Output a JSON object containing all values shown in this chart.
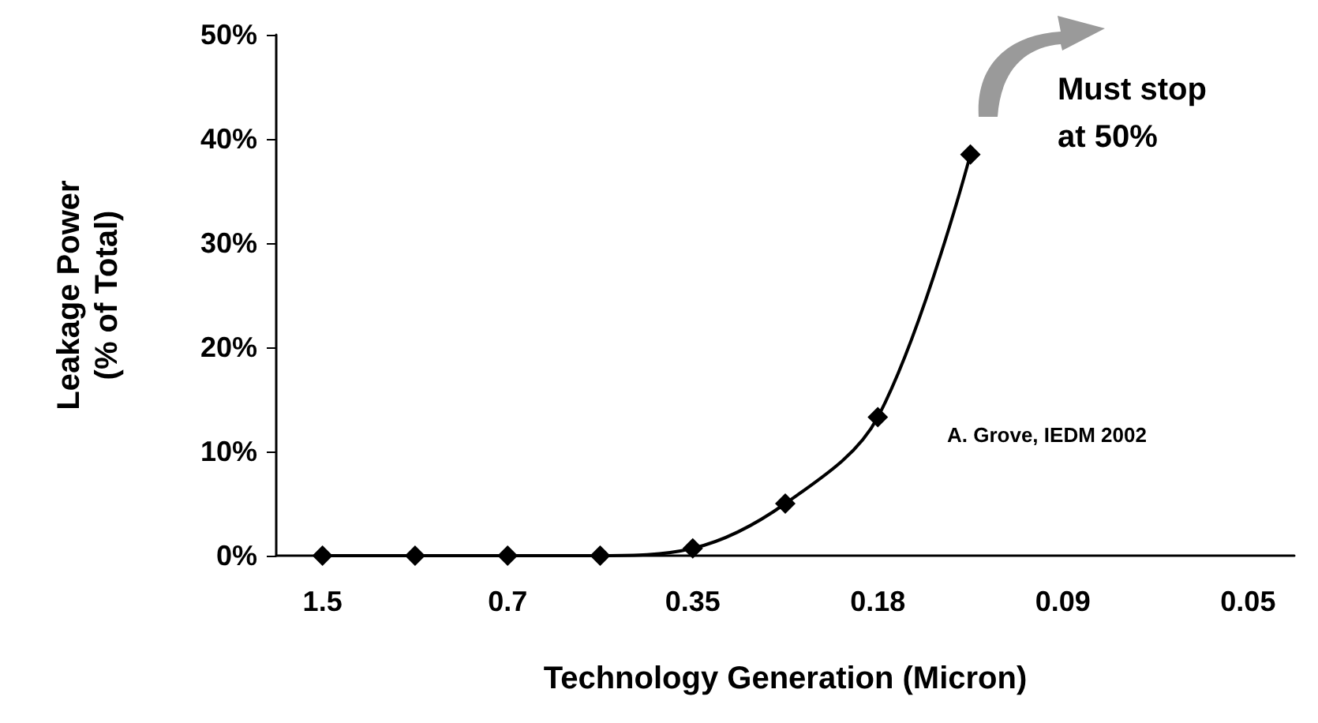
{
  "chart_data": {
    "type": "line",
    "xlabel": "Technology Generation (Micron)",
    "ylabel": "Leakage Power\n(% of Total)",
    "categories": [
      "1.5",
      null,
      "0.7",
      null,
      "0.35",
      null,
      "0.18",
      null,
      "0.09",
      null,
      "0.05"
    ],
    "series": [
      {
        "color": "#000000",
        "values": [
          0,
          0,
          0,
          0,
          0.7,
          5,
          13.3,
          38.5,
          null,
          null,
          null
        ]
      }
    ],
    "ylim": [
      0,
      50
    ],
    "yticks": [
      {
        "value": 0,
        "label": "0%"
      },
      {
        "value": 10,
        "label": "10%"
      },
      {
        "value": 20,
        "label": "20%"
      },
      {
        "value": 30,
        "label": "30%"
      },
      {
        "value": 40,
        "label": "40%"
      },
      {
        "value": 50,
        "label": "50%"
      }
    ],
    "annotations": [
      "Must stop at 50%",
      "A. Grove, IEDM 2002"
    ],
    "marker": "diamond",
    "line_style": "solid"
  }
}
